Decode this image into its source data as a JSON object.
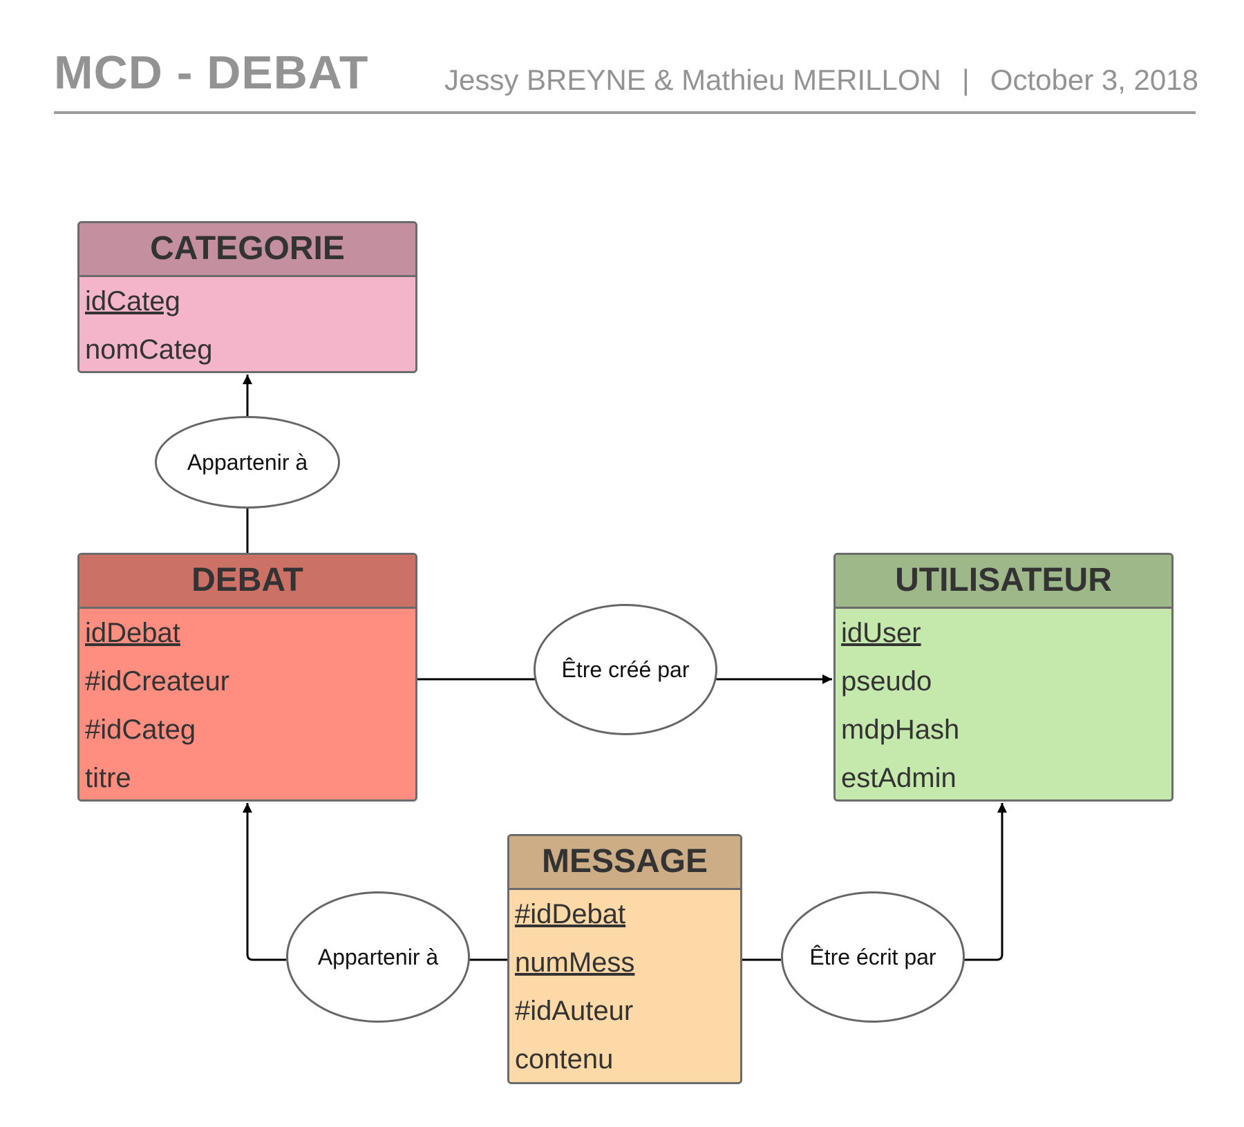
{
  "header": {
    "title": "MCD - DEBAT",
    "authors": "Jessy BREYNE & Mathieu MERILLON",
    "separator": "|",
    "date": "October 3, 2018"
  },
  "entities": {
    "categorie": {
      "name": "CATEGORIE",
      "head_color": "#c48f9e",
      "body_color": "#f4b4c9",
      "attributes": [
        {
          "label": "idCateg",
          "key": true
        },
        {
          "label": "nomCateg",
          "key": false
        }
      ]
    },
    "debat": {
      "name": "DEBAT",
      "head_color": "#cc7166",
      "body_color": "#ff8e80",
      "attributes": [
        {
          "label": "idDebat",
          "key": true
        },
        {
          "label": "#idCreateur",
          "key": false
        },
        {
          "label": "#idCateg",
          "key": false
        },
        {
          "label": "titre",
          "key": false
        }
      ]
    },
    "utilisateur": {
      "name": "UTILISATEUR",
      "head_color": "#9eb88a",
      "body_color": "#c5e8ac",
      "attributes": [
        {
          "label": "idUser",
          "key": true
        },
        {
          "label": "pseudo",
          "key": false
        },
        {
          "label": "mdpHash",
          "key": false
        },
        {
          "label": "estAdmin",
          "key": false
        }
      ]
    },
    "message": {
      "name": "MESSAGE",
      "head_color": "#cdad85",
      "body_color": "#fed9a8",
      "attributes": [
        {
          "label": "#idDebat",
          "key": true
        },
        {
          "label": "numMess",
          "key": true
        },
        {
          "label": "#idAuteur",
          "key": false
        },
        {
          "label": "contenu",
          "key": false
        }
      ]
    }
  },
  "associations": {
    "debat_categorie": {
      "label": "Appartenir à",
      "from": "DEBAT",
      "to": "CATEGORIE"
    },
    "debat_utilisateur": {
      "label": "Être créé par",
      "from": "DEBAT",
      "to": "UTILISATEUR"
    },
    "message_debat": {
      "label": "Appartenir à",
      "from": "MESSAGE",
      "to": "DEBAT"
    },
    "message_utilisateur": {
      "label": "Être écrit par",
      "from": "MESSAGE",
      "to": "UTILISATEUR"
    }
  }
}
